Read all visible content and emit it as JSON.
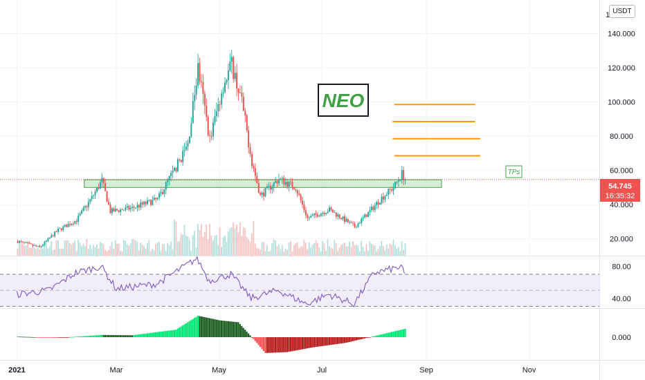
{
  "chart_data": [
    {
      "type": "candlestick",
      "symbol": "NEO",
      "quote": "USDT",
      "title_annotation": "NEO",
      "tp_label": "TPs",
      "x_ticks": [
        "2021",
        "Mar",
        "May",
        "Jul",
        "Sep",
        "Nov"
      ],
      "y_ticks": [
        "20.000",
        "40.000",
        "60.000",
        "80.000",
        "100.000",
        "120.000",
        "140.000"
      ],
      "y_top_tick_partial": "1",
      "ylim": [
        13,
        150
      ],
      "last_price": "54.745",
      "countdown": "16:35:32",
      "key_points": [
        {
          "date": "2021-01-01",
          "close": 18.5
        },
        {
          "date": "2021-01-14",
          "close": 15.0
        },
        {
          "date": "2021-01-25",
          "close": 25.0
        },
        {
          "date": "2021-02-05",
          "close": 31.0
        },
        {
          "date": "2021-02-14",
          "close": 44.0
        },
        {
          "date": "2021-02-20",
          "close": 54.0
        },
        {
          "date": "2021-02-25",
          "close": 36.0
        },
        {
          "date": "2021-03-10",
          "close": 38.0
        },
        {
          "date": "2021-03-25",
          "close": 43.0
        },
        {
          "date": "2021-04-05",
          "close": 62.0
        },
        {
          "date": "2021-04-12",
          "close": 75.0
        },
        {
          "date": "2021-04-18",
          "close": 120.0
        },
        {
          "date": "2021-04-25",
          "close": 78.0
        },
        {
          "date": "2021-05-03",
          "close": 110.0
        },
        {
          "date": "2021-05-08",
          "close": 122.0
        },
        {
          "date": "2021-05-14",
          "close": 100.0
        },
        {
          "date": "2021-05-20",
          "close": 65.0
        },
        {
          "date": "2021-05-25",
          "close": 45.0
        },
        {
          "date": "2021-06-05",
          "close": 55.0
        },
        {
          "date": "2021-06-15",
          "close": 50.0
        },
        {
          "date": "2021-06-22",
          "close": 32.0
        },
        {
          "date": "2021-07-05",
          "close": 37.0
        },
        {
          "date": "2021-07-20",
          "close": 27.0
        },
        {
          "date": "2021-07-28",
          "close": 35.0
        },
        {
          "date": "2021-08-05",
          "close": 44.0
        },
        {
          "date": "2021-08-12",
          "close": 50.0
        },
        {
          "date": "2021-08-17",
          "close": 58.0
        },
        {
          "date": "2021-08-19",
          "close": 54.745
        }
      ],
      "support_zone": {
        "from_date": "2021-02-10",
        "to_date": "2021-09-10",
        "low": 50,
        "high": 54.5
      },
      "tp_levels": [
        {
          "value": 98.5,
          "from_date": "2021-08-13",
          "to_date": "2021-09-30"
        },
        {
          "value": 88.5,
          "from_date": "2021-08-12",
          "to_date": "2021-09-30"
        },
        {
          "value": 78.5,
          "from_date": "2021-08-12",
          "to_date": "2021-10-03"
        },
        {
          "value": 68.5,
          "from_date": "2021-08-13",
          "to_date": "2021-10-03"
        }
      ],
      "colors": {
        "up": "#26a69a",
        "down": "#ef5350",
        "zone_fill": "#c8e6c9",
        "zone_border": "#43a047",
        "tp_line": "#ff9800",
        "annotation_text": "#43a047",
        "price_line": "#ef5350"
      }
    },
    {
      "type": "line",
      "indicator": "RSI",
      "y_ticks": [
        "40.00",
        "80.00"
      ],
      "ylim": [
        25,
        95
      ],
      "band": [
        30,
        70
      ],
      "midline": 50,
      "key_points": [
        {
          "date": "2021-01-01",
          "value": 45
        },
        {
          "date": "2021-01-20",
          "value": 50
        },
        {
          "date": "2021-02-05",
          "value": 72
        },
        {
          "date": "2021-02-20",
          "value": 80
        },
        {
          "date": "2021-03-01",
          "value": 52
        },
        {
          "date": "2021-03-25",
          "value": 58
        },
        {
          "date": "2021-04-18",
          "value": 90
        },
        {
          "date": "2021-04-25",
          "value": 62
        },
        {
          "date": "2021-05-08",
          "value": 70
        },
        {
          "date": "2021-05-20",
          "value": 40
        },
        {
          "date": "2021-06-05",
          "value": 50
        },
        {
          "date": "2021-06-22",
          "value": 33
        },
        {
          "date": "2021-07-05",
          "value": 45
        },
        {
          "date": "2021-07-20",
          "value": 33
        },
        {
          "date": "2021-08-01",
          "value": 72
        },
        {
          "date": "2021-08-17",
          "value": 79
        },
        {
          "date": "2021-08-19",
          "value": 70
        }
      ],
      "colors": {
        "line": "#7e57c2",
        "band": "#ede7f6",
        "band_border": "#787b86"
      }
    },
    {
      "type": "bar",
      "indicator": "MACD histogram",
      "y_ticks": [
        "0.000"
      ],
      "ylim": [
        -10,
        14
      ],
      "key_points": [
        {
          "date": "2021-01-01",
          "value": 0.3
        },
        {
          "date": "2021-01-25",
          "value": -0.4
        },
        {
          "date": "2021-02-20",
          "value": 1.2
        },
        {
          "date": "2021-03-10",
          "value": 1.0
        },
        {
          "date": "2021-04-05",
          "value": 4.0
        },
        {
          "date": "2021-04-18",
          "value": 11.5
        },
        {
          "date": "2021-05-01",
          "value": 9.0
        },
        {
          "date": "2021-05-12",
          "value": 8.0
        },
        {
          "date": "2021-05-21",
          "value": -1.0
        },
        {
          "date": "2021-05-28",
          "value": -8.5
        },
        {
          "date": "2021-06-10",
          "value": -8.0
        },
        {
          "date": "2021-06-25",
          "value": -5.5
        },
        {
          "date": "2021-07-15",
          "value": -3.0
        },
        {
          "date": "2021-07-30",
          "value": 0.2
        },
        {
          "date": "2021-08-19",
          "value": 4.5
        }
      ],
      "colors": {
        "up_strong": "#00e676",
        "up_weak": "#1b5e20",
        "down_strong": "#ff5252",
        "down_weak": "#b71c1c"
      }
    }
  ]
}
